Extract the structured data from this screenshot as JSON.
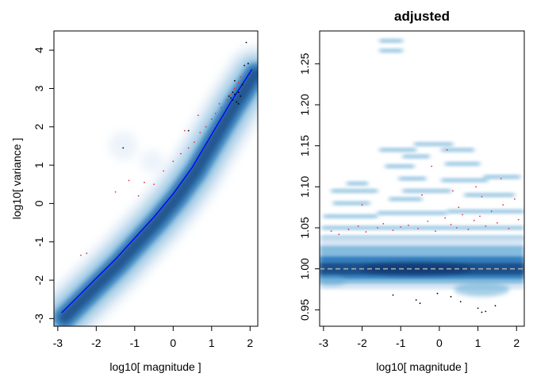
{
  "chart_data": [
    {
      "type": "scatter",
      "title": "",
      "xlabel": "log10[ magnitude ]",
      "ylabel": "log10[ variance ]",
      "xlim": [
        -3.1,
        2.2
      ],
      "ylim": [
        -3.2,
        4.5
      ],
      "xticks": [
        "-3",
        "-2",
        "-1",
        "0",
        "1",
        "2"
      ],
      "yticks": [
        "-3",
        "-2",
        "-1",
        "0",
        "1",
        "2",
        "3",
        "4"
      ],
      "density_colors": [
        "#ffffff",
        "#c6dbef",
        "#6baed6",
        "#2171b5",
        "#08306b"
      ],
      "trend_color": "#0000ff",
      "trend_line": {
        "x": [
          -2.9,
          -2.5,
          -2.0,
          -1.5,
          -1.0,
          -0.5,
          0.0,
          0.5,
          1.0,
          1.5,
          2.05
        ],
        "y": [
          -2.85,
          -2.45,
          -1.95,
          -1.45,
          -0.9,
          -0.35,
          0.25,
          0.95,
          1.8,
          2.65,
          3.5
        ]
      },
      "highlight_points": {
        "color": "#e8334a",
        "x": [
          -2.4,
          -2.25,
          -1.5,
          -1.15,
          -0.75,
          -0.5,
          -0.25,
          0.0,
          0.2,
          0.4,
          0.55,
          0.7,
          0.85,
          1.0,
          1.1,
          1.25,
          1.4,
          1.5,
          1.6,
          1.7,
          1.75,
          -0.9,
          0.3,
          0.65,
          1.2
        ],
        "y": [
          -1.35,
          -1.3,
          0.3,
          0.6,
          0.55,
          0.5,
          0.85,
          1.1,
          1.3,
          1.45,
          1.6,
          1.85,
          2.0,
          2.2,
          2.35,
          2.5,
          2.7,
          2.85,
          3.0,
          3.15,
          3.3,
          0.2,
          1.9,
          2.3,
          2.6
        ]
      },
      "outlier_points": {
        "color": "#000000",
        "x": [
          1.45,
          1.5,
          1.55,
          1.6,
          1.65,
          1.7,
          1.75,
          1.8,
          1.85,
          1.6,
          1.7,
          1.55,
          1.95,
          1.9,
          -1.3,
          0.4
        ],
        "y": [
          2.8,
          2.75,
          2.7,
          2.85,
          2.65,
          2.9,
          2.8,
          3.1,
          3.6,
          3.2,
          2.6,
          2.9,
          3.65,
          4.2,
          1.45,
          1.9
        ]
      }
    },
    {
      "type": "scatter",
      "title": "adjusted",
      "xlabel": "log10[ magnitude ]",
      "ylabel": "",
      "xlim": [
        -3.1,
        2.2
      ],
      "ylim": [
        0.93,
        1.29
      ],
      "xticks": [
        "-3",
        "-2",
        "-1",
        "0",
        "1",
        "2"
      ],
      "yticks": [
        "0.95",
        "1.00",
        "1.05",
        "1.10",
        "1.15",
        "1.20",
        "1.25"
      ],
      "reference_line": {
        "y": 1.0,
        "color": "#aaaaaa",
        "style": "dashed"
      },
      "density_colors": [
        "#ffffff",
        "#c6dbef",
        "#6baed6",
        "#2171b5",
        "#08306b"
      ],
      "bands": [
        {
          "x0": -1.55,
          "x1": -0.95,
          "y": 1.278
        },
        {
          "x0": -1.55,
          "x1": -0.95,
          "y": 1.266
        },
        {
          "x0": -1.55,
          "x1": -0.6,
          "y": 1.145
        },
        {
          "x0": -0.65,
          "x1": 0.35,
          "y": 1.152
        },
        {
          "x0": -1.4,
          "x1": -0.65,
          "y": 1.125
        },
        {
          "x0": -0.95,
          "x1": -0.25,
          "y": 1.137
        },
        {
          "x0": 0.05,
          "x1": 0.9,
          "y": 1.145
        },
        {
          "x0": 0.15,
          "x1": 1.05,
          "y": 1.128
        },
        {
          "x0": -2.4,
          "x1": -1.85,
          "y": 1.104
        },
        {
          "x0": -2.8,
          "x1": -1.6,
          "y": 1.095
        },
        {
          "x0": -1.05,
          "x1": -0.35,
          "y": 1.11
        },
        {
          "x0": -0.95,
          "x1": 0.3,
          "y": 1.095
        },
        {
          "x0": 0.05,
          "x1": 1.25,
          "y": 1.108
        },
        {
          "x0": 1.15,
          "x1": 2.1,
          "y": 1.112
        },
        {
          "x0": -2.75,
          "x1": -1.8,
          "y": 1.08
        },
        {
          "x0": -1.3,
          "x1": -0.45,
          "y": 1.085
        },
        {
          "x0": 0.65,
          "x1": 1.95,
          "y": 1.09
        },
        {
          "x0": -3.0,
          "x1": -1.6,
          "y": 1.064
        },
        {
          "x0": -1.6,
          "x1": 0.2,
          "y": 1.068
        },
        {
          "x0": 0.2,
          "x1": 2.2,
          "y": 1.07
        },
        {
          "x0": -3.05,
          "x1": 2.2,
          "y": 1.05
        },
        {
          "x0": -3.05,
          "x1": 2.2,
          "y": 1.038
        }
      ],
      "highlight_points": {
        "color": "#e8334a",
        "x": [
          -2.8,
          -2.6,
          -2.35,
          -2.1,
          -1.9,
          -1.6,
          -1.45,
          -1.2,
          -1.0,
          -0.8,
          -0.55,
          -0.3,
          -0.1,
          0.15,
          0.3,
          0.45,
          0.5,
          0.6,
          0.75,
          0.9,
          1.05,
          1.2,
          1.35,
          1.5,
          1.65,
          1.8,
          1.95,
          2.05,
          -0.45,
          0.35,
          0.95,
          1.6,
          -2.0,
          -0.2,
          0.2,
          1.1
        ],
        "y": [
          1.046,
          1.042,
          1.048,
          1.052,
          1.045,
          1.05,
          1.055,
          1.047,
          1.051,
          1.053,
          1.049,
          1.058,
          1.046,
          1.062,
          1.054,
          1.05,
          1.075,
          1.066,
          1.048,
          1.059,
          1.064,
          1.052,
          1.07,
          1.056,
          1.078,
          1.049,
          1.085,
          1.06,
          1.09,
          1.095,
          1.1,
          1.11,
          1.078,
          1.125,
          1.145,
          1.088
        ]
      },
      "outlier_points": {
        "color": "#000000",
        "x": [
          -1.2,
          -0.6,
          -0.5,
          0.3,
          1.0,
          1.1,
          1.2,
          1.45,
          0.55,
          -0.05
        ],
        "y": [
          0.968,
          0.962,
          0.958,
          0.966,
          0.952,
          0.947,
          0.948,
          0.955,
          0.96,
          0.97
        ]
      }
    }
  ]
}
